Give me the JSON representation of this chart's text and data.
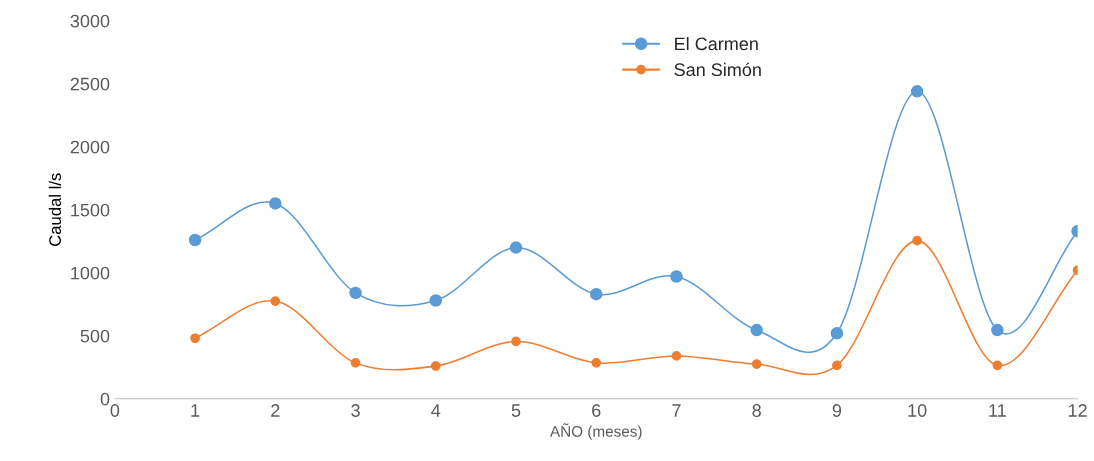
{
  "chart_data": {
    "type": "line",
    "xlabel": "AÑO (meses)",
    "ylabel": "Caudal l/s",
    "x": [
      1,
      2,
      3,
      4,
      5,
      6,
      7,
      8,
      9,
      10,
      11,
      12
    ],
    "series": [
      {
        "name": "El Carmen",
        "color": "#5b9bd5",
        "values": [
          1260,
          1550,
          840,
          780,
          1200,
          830,
          970,
          545,
          520,
          2440,
          545,
          1330
        ]
      },
      {
        "name": "San Simón",
        "color": "#ed7d31",
        "values": [
          480,
          775,
          285,
          260,
          455,
          285,
          340,
          275,
          265,
          1255,
          265,
          1020
        ]
      }
    ],
    "xlim": [
      0,
      12
    ],
    "xticks": [
      0,
      1,
      2,
      3,
      4,
      5,
      6,
      7,
      8,
      9,
      10,
      11,
      12
    ],
    "ylim": [
      0,
      3000
    ],
    "yticks": [
      0,
      500,
      1000,
      1500,
      2000,
      2500,
      3000
    ],
    "grid": false,
    "legend": "top",
    "marker": "circle",
    "line_style": "solid"
  }
}
